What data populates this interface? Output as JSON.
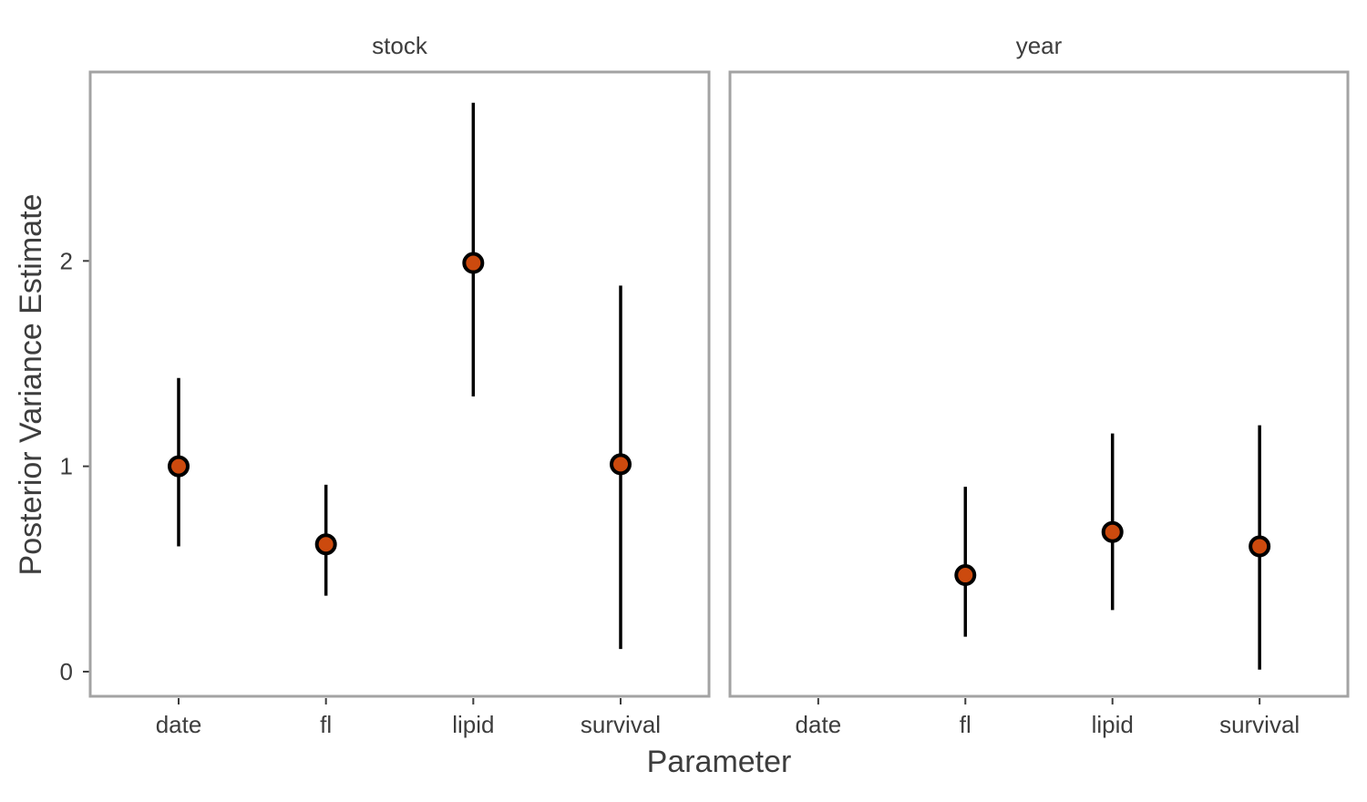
{
  "chart_data": {
    "type": "scatter",
    "subtype": "pointrange-faceted",
    "xlabel": "Parameter",
    "ylabel": "Posterior Variance Estimate",
    "categories": [
      "date",
      "fl",
      "lipid",
      "survival"
    ],
    "ylim": [
      -0.12,
      2.92
    ],
    "yticks": [
      0,
      1,
      2
    ],
    "grid": false,
    "legend": "none",
    "point_color": "#cc4a0e",
    "point_outline": "#000000",
    "facets": [
      {
        "name": "stock",
        "points": [
          {
            "category": "date",
            "estimate": 1.0,
            "lower": 0.61,
            "upper": 1.43
          },
          {
            "category": "fl",
            "estimate": 0.62,
            "lower": 0.37,
            "upper": 0.91
          },
          {
            "category": "lipid",
            "estimate": 1.99,
            "lower": 1.34,
            "upper": 2.77
          },
          {
            "category": "survival",
            "estimate": 1.01,
            "lower": 0.11,
            "upper": 1.88
          }
        ]
      },
      {
        "name": "year",
        "points": [
          {
            "category": "fl",
            "estimate": 0.47,
            "lower": 0.17,
            "upper": 0.9
          },
          {
            "category": "lipid",
            "estimate": 0.68,
            "lower": 0.3,
            "upper": 1.16
          },
          {
            "category": "survival",
            "estimate": 0.61,
            "lower": 0.01,
            "upper": 1.2
          }
        ]
      }
    ]
  }
}
